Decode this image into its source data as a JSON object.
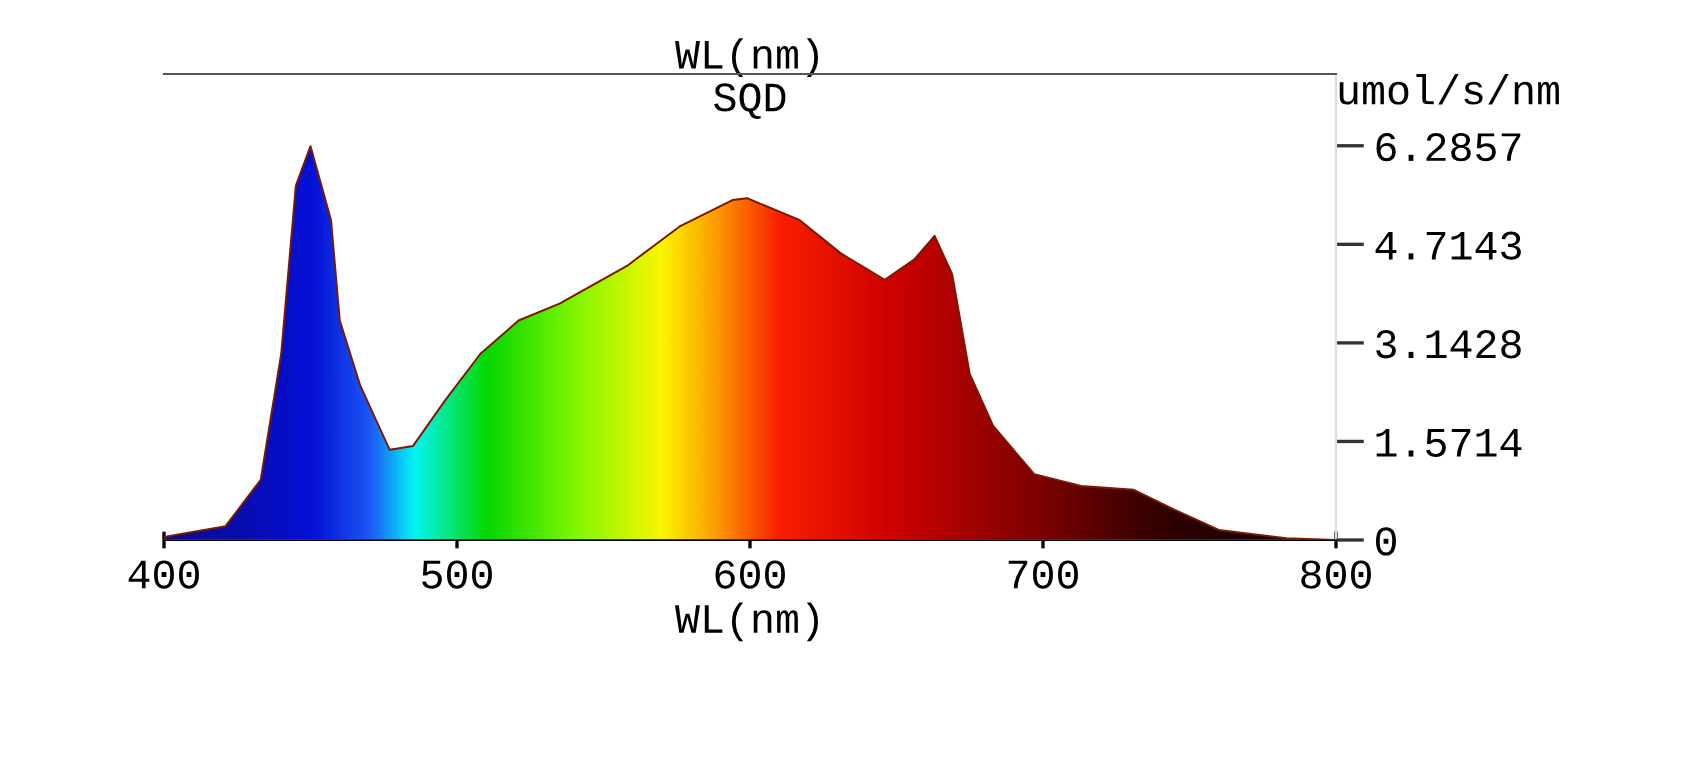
{
  "chart_data": {
    "type": "area",
    "title": "SQD",
    "xlabel": "WL(nm)",
    "x2label": "WL(nm)",
    "ylabel": "umol/s/nm",
    "xlim": [
      400,
      800
    ],
    "xticks": [
      400,
      500,
      600,
      700,
      800
    ],
    "ylim": [
      0,
      7.43
    ],
    "yticks": [
      0,
      1.5714,
      3.1428,
      4.7143,
      6.2857
    ],
    "grid": false,
    "legend": false,
    "series": [
      {
        "x": [
          400,
          421,
          433,
          440,
          445,
          450,
          457,
          460,
          467,
          477,
          485,
          496,
          508,
          521,
          535,
          558,
          576,
          594,
          599,
          617,
          631,
          646,
          656,
          663,
          669,
          675,
          683,
          697,
          713,
          731,
          745,
          760,
          783,
          800
        ],
        "values": [
          0.05,
          0.22,
          0.96,
          2.97,
          5.65,
          6.28,
          5.1,
          3.5,
          2.46,
          1.44,
          1.5,
          2.23,
          2.97,
          3.5,
          3.77,
          4.37,
          5.0,
          5.42,
          5.45,
          5.1,
          4.57,
          4.15,
          4.47,
          4.85,
          4.24,
          2.65,
          1.82,
          1.05,
          0.86,
          0.8,
          0.48,
          0.16,
          0.03,
          0
        ]
      }
    ]
  }
}
